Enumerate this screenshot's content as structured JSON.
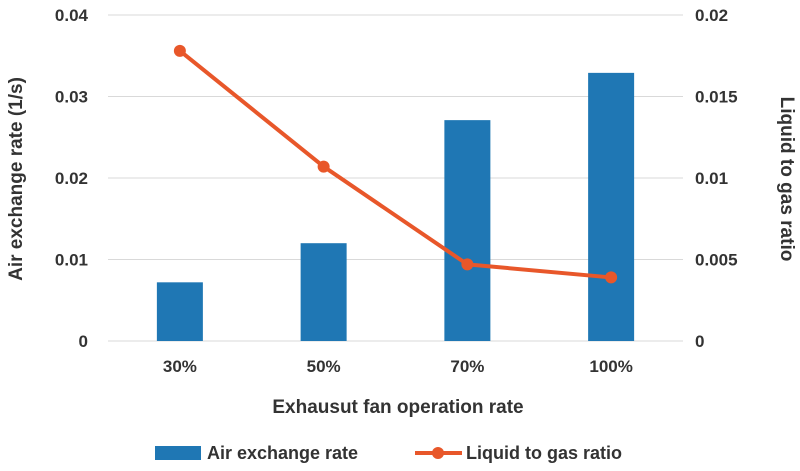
{
  "chart_data": {
    "type": "bar",
    "categories": [
      "30%",
      "50%",
      "70%",
      "100%"
    ],
    "xlabel": "Exhausut fan operation rate",
    "ylabel_left": "Air exchange rate (1/s)",
    "ylabel_right": "Liquid to gas ratio",
    "ylim_left": [
      0,
      0.04
    ],
    "ylim_right": [
      0,
      0.02
    ],
    "yticks_left": [
      "0",
      "0.01",
      "0.02",
      "0.03",
      "0.04"
    ],
    "yticks_right": [
      "0",
      "0.005",
      "0.01",
      "0.015",
      "0.02"
    ],
    "grid": true,
    "legend_position": "bottom",
    "series": [
      {
        "name": "Air exchange rate",
        "type": "bar",
        "axis": "left",
        "color": "#1f77b4",
        "values": [
          0.0072,
          0.012,
          0.0271,
          0.0329
        ]
      },
      {
        "name": "Liquid to gas ratio",
        "type": "line",
        "axis": "right",
        "color": "#e8572a",
        "values": [
          0.0178,
          0.0107,
          0.0047,
          0.0039
        ]
      }
    ]
  }
}
